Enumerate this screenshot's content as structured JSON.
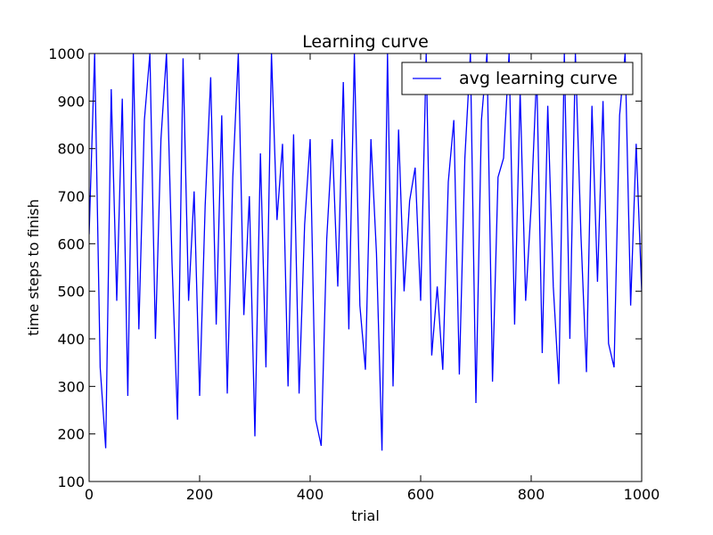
{
  "chart_data": {
    "type": "line",
    "title": "Learning curve",
    "xlabel": "trial",
    "ylabel": "time steps to finish",
    "xlim": [
      0,
      1000
    ],
    "ylim": [
      100,
      1000
    ],
    "x_ticks": [
      0,
      200,
      400,
      600,
      800,
      1000
    ],
    "y_ticks": [
      100,
      200,
      300,
      400,
      500,
      600,
      700,
      800,
      900,
      1000
    ],
    "grid": false,
    "legend_position": "top-right",
    "line_color": "#0000ff",
    "series": [
      {
        "name": "avg learning curve",
        "x": [
          0,
          10,
          20,
          30,
          40,
          50,
          60,
          70,
          80,
          90,
          100,
          110,
          120,
          130,
          140,
          150,
          160,
          170,
          180,
          190,
          200,
          210,
          220,
          230,
          240,
          250,
          260,
          270,
          280,
          290,
          300,
          310,
          320,
          330,
          340,
          350,
          360,
          370,
          380,
          390,
          400,
          410,
          420,
          430,
          440,
          450,
          460,
          470,
          480,
          490,
          500,
          510,
          520,
          530,
          540,
          550,
          560,
          570,
          580,
          590,
          600,
          610,
          620,
          630,
          640,
          650,
          660,
          670,
          680,
          690,
          700,
          710,
          720,
          730,
          740,
          750,
          760,
          770,
          780,
          790,
          800,
          810,
          820,
          830,
          840,
          850,
          860,
          870,
          880,
          890,
          900,
          910,
          920,
          930,
          940,
          950,
          960,
          970,
          980,
          990,
          1000
        ],
        "values": [
          620,
          1000,
          340,
          170,
          925,
          480,
          905,
          280,
          1000,
          420,
          860,
          1000,
          400,
          820,
          1000,
          560,
          230,
          990,
          480,
          710,
          280,
          680,
          950,
          430,
          870,
          285,
          740,
          1000,
          450,
          700,
          195,
          790,
          340,
          1000,
          650,
          810,
          300,
          830,
          285,
          640,
          820,
          230,
          175,
          610,
          820,
          510,
          940,
          420,
          1000,
          470,
          335,
          820,
          580,
          165,
          1000,
          300,
          840,
          500,
          690,
          760,
          480,
          1000,
          365,
          510,
          335,
          730,
          860,
          325,
          780,
          1000,
          265,
          860,
          1000,
          310,
          740,
          780,
          1000,
          430,
          920,
          480,
          680,
          960,
          370,
          890,
          510,
          305,
          1000,
          400,
          1000,
          620,
          330,
          890,
          520,
          900,
          390,
          340,
          870,
          1000,
          470,
          810,
          500
        ]
      }
    ]
  }
}
